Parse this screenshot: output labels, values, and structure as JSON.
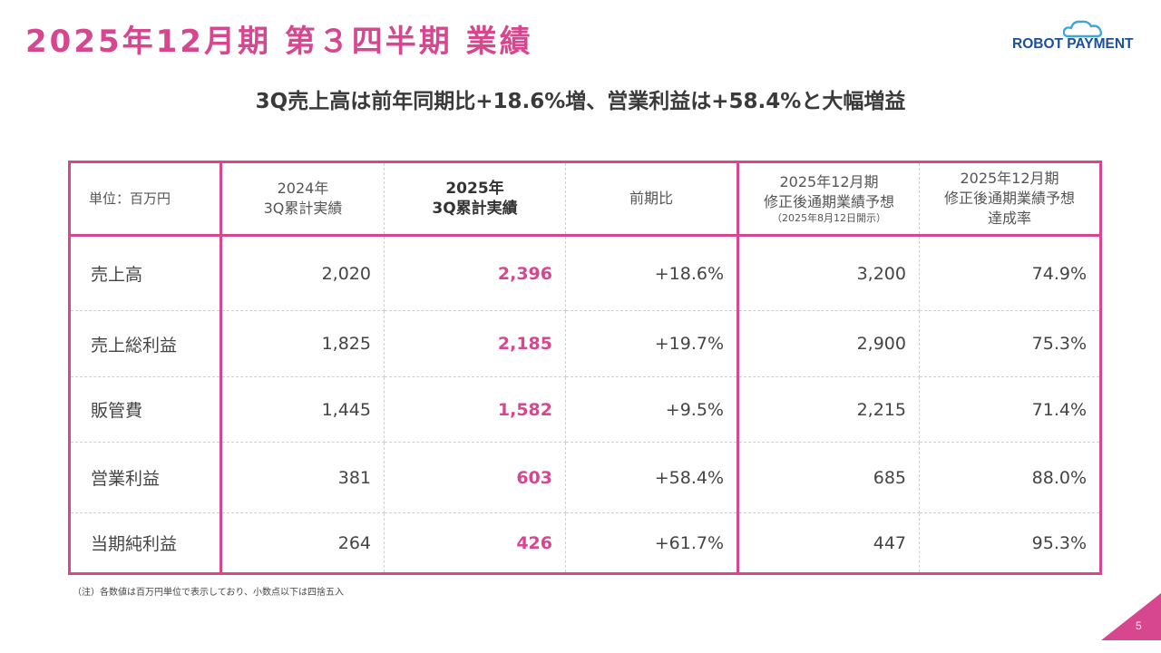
{
  "slide": {
    "title": "2025年12月期 第３四半期 業績",
    "subtitle": "3Q売上高は前年同期比+18.6%増、営業利益は+58.4%と大幅増益",
    "logo_text": "ROBOT PAYMENT",
    "footnote": "（注）各数値は百万円単位で表示しており、小数点以下は四捨五入",
    "page_number": "5",
    "colors": {
      "accent": "#d6478f",
      "logo": "#1b4e9b",
      "logo_cloud": "#3fa6d9"
    }
  },
  "table": {
    "headers": {
      "unit": "単位：百万円",
      "prev_line1": "2024年",
      "prev_line2": "3Q累計実績",
      "curr_line1": "2025年",
      "curr_line2": "3Q累計実績",
      "yoy": "前期比",
      "forecast_line1": "2025年12月期",
      "forecast_line2": "修正後通期業績予想",
      "forecast_note": "（2025年8月12日開示）",
      "rate_line1": "2025年12月期",
      "rate_line2": "修正後通期業績予想",
      "rate_line3": "達成率"
    },
    "rows": [
      {
        "label": "売上高",
        "prev": "2,020",
        "curr": "2,396",
        "yoy": "+18.6%",
        "forecast": "3,200",
        "rate": "74.9%"
      },
      {
        "label": "売上総利益",
        "prev": "1,825",
        "curr": "2,185",
        "yoy": "+19.7%",
        "forecast": "2,900",
        "rate": "75.3%"
      },
      {
        "label": "販管費",
        "prev": "1,445",
        "curr": "1,582",
        "yoy": "+9.5%",
        "forecast": "2,215",
        "rate": "71.4%"
      },
      {
        "label": "営業利益",
        "prev": "381",
        "curr": "603",
        "yoy": "+58.4%",
        "forecast": "685",
        "rate": "88.0%"
      },
      {
        "label": "当期純利益",
        "prev": "264",
        "curr": "426",
        "yoy": "+61.7%",
        "forecast": "447",
        "rate": "95.3%"
      }
    ]
  }
}
